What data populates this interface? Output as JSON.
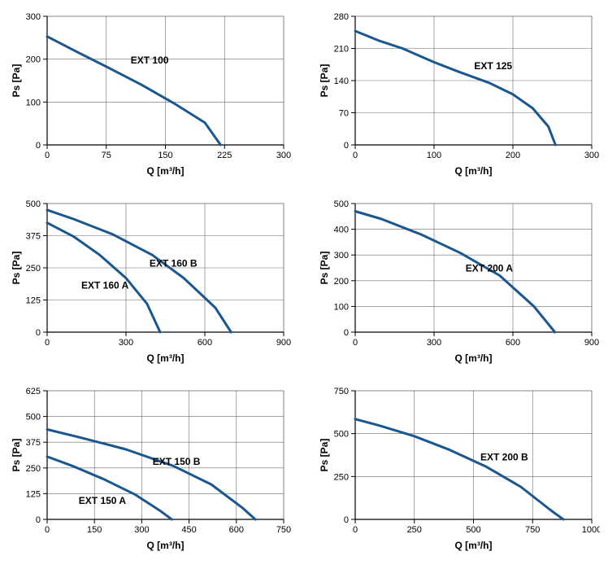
{
  "global": {
    "xlabel": "Q [m³/h]",
    "ylabel": "Ps [Pa]",
    "axis_fontsize": 12,
    "tick_fontsize": 11,
    "label_fontsize": 12,
    "series_color": "#1a578f",
    "series_width": 3,
    "grid_color": "#6b6b6b",
    "grid_width": 0.6,
    "axis_color": "#000000",
    "background_color": "#ffffff",
    "font_family": "Arial"
  },
  "charts": [
    {
      "id": "c1",
      "xlim": [
        0,
        300
      ],
      "xtick_step": 75,
      "ylim": [
        0,
        300
      ],
      "ytick_step": 100,
      "ytick_labels": [
        0,
        100,
        200,
        300
      ],
      "xtick_labels": [
        0,
        75,
        150,
        225,
        300
      ],
      "series": [
        {
          "label": "EXT 100",
          "label_x": 130,
          "label_y": 190,
          "points": [
            [
              0,
              253
            ],
            [
              40,
              215
            ],
            [
              80,
              178
            ],
            [
              120,
              140
            ],
            [
              160,
              98
            ],
            [
              200,
              52
            ],
            [
              220,
              0
            ]
          ]
        }
      ]
    },
    {
      "id": "c2",
      "xlim": [
        0,
        300
      ],
      "xtick_step": 100,
      "ylim": [
        0,
        280
      ],
      "ytick_step": 70,
      "ytick_labels": [
        0,
        70,
        140,
        210,
        280
      ],
      "xtick_labels": [
        0,
        100,
        200,
        300
      ],
      "series": [
        {
          "label": "EXT 125",
          "label_x": 175,
          "label_y": 165,
          "points": [
            [
              0,
              248
            ],
            [
              30,
              227
            ],
            [
              60,
              210
            ],
            [
              100,
              180
            ],
            [
              130,
              160
            ],
            [
              170,
              135
            ],
            [
              200,
              110
            ],
            [
              225,
              80
            ],
            [
              245,
              40
            ],
            [
              254,
              0
            ]
          ]
        }
      ]
    },
    {
      "id": "c3",
      "xlim": [
        0,
        900
      ],
      "xtick_step": 300,
      "ylim": [
        0,
        500
      ],
      "ytick_step": 125,
      "ytick_labels": [
        0,
        125,
        250,
        375,
        500
      ],
      "xtick_labels": [
        0,
        300,
        600,
        900
      ],
      "series": [
        {
          "label": "EXT 160 A",
          "label_x": 220,
          "label_y": 170,
          "points": [
            [
              0,
              425
            ],
            [
              100,
              372
            ],
            [
              200,
              300
            ],
            [
              300,
              210
            ],
            [
              380,
              110
            ],
            [
              430,
              0
            ]
          ]
        },
        {
          "label": "EXT 160 B",
          "label_x": 480,
          "label_y": 255,
          "points": [
            [
              0,
              475
            ],
            [
              100,
              440
            ],
            [
              250,
              380
            ],
            [
              400,
              300
            ],
            [
              520,
              210
            ],
            [
              640,
              95
            ],
            [
              700,
              0
            ]
          ]
        }
      ]
    },
    {
      "id": "c4",
      "xlim": [
        0,
        900
      ],
      "xtick_step": 300,
      "ylim": [
        0,
        500
      ],
      "ytick_step": 100,
      "ytick_labels": [
        0,
        100,
        200,
        300,
        400,
        500
      ],
      "xtick_labels": [
        0,
        300,
        600,
        900
      ],
      "series": [
        {
          "label": "EXT 200 A",
          "label_x": 510,
          "label_y": 235,
          "points": [
            [
              0,
              470
            ],
            [
              100,
              440
            ],
            [
              250,
              380
            ],
            [
              400,
              308
            ],
            [
              550,
              220
            ],
            [
              680,
              100
            ],
            [
              760,
              0
            ]
          ]
        }
      ]
    },
    {
      "id": "c5",
      "xlim": [
        0,
        750
      ],
      "xtick_step": 150,
      "ylim": [
        0,
        625
      ],
      "ytick_step": 125,
      "ytick_labels": [
        0,
        125,
        250,
        375,
        500,
        625
      ],
      "xtick_labels": [
        0,
        150,
        300,
        450,
        600,
        750
      ],
      "series": [
        {
          "label": "EXT 150 A",
          "label_x": 175,
          "label_y": 75,
          "points": [
            [
              0,
              305
            ],
            [
              80,
              260
            ],
            [
              180,
              195
            ],
            [
              280,
              120
            ],
            [
              360,
              40
            ],
            [
              395,
              0
            ]
          ]
        },
        {
          "label": "EXT 150 B",
          "label_x": 410,
          "label_y": 265,
          "points": [
            [
              0,
              437
            ],
            [
              100,
              400
            ],
            [
              250,
              340
            ],
            [
              400,
              260
            ],
            [
              520,
              170
            ],
            [
              620,
              55
            ],
            [
              660,
              0
            ]
          ]
        }
      ]
    },
    {
      "id": "c6",
      "xlim": [
        0,
        1000
      ],
      "xtick_step": 250,
      "ylim": [
        0,
        750
      ],
      "ytick_step": 250,
      "ytick_labels": [
        0,
        250,
        500,
        750
      ],
      "xtick_labels": [
        0,
        250,
        500,
        750,
        1000
      ],
      "series": [
        {
          "label": "EXT 200 B",
          "label_x": 630,
          "label_y": 345,
          "points": [
            [
              0,
              585
            ],
            [
              100,
              548
            ],
            [
              250,
              485
            ],
            [
              400,
              405
            ],
            [
              550,
              310
            ],
            [
              700,
              190
            ],
            [
              830,
              50
            ],
            [
              880,
              0
            ]
          ]
        }
      ]
    }
  ]
}
